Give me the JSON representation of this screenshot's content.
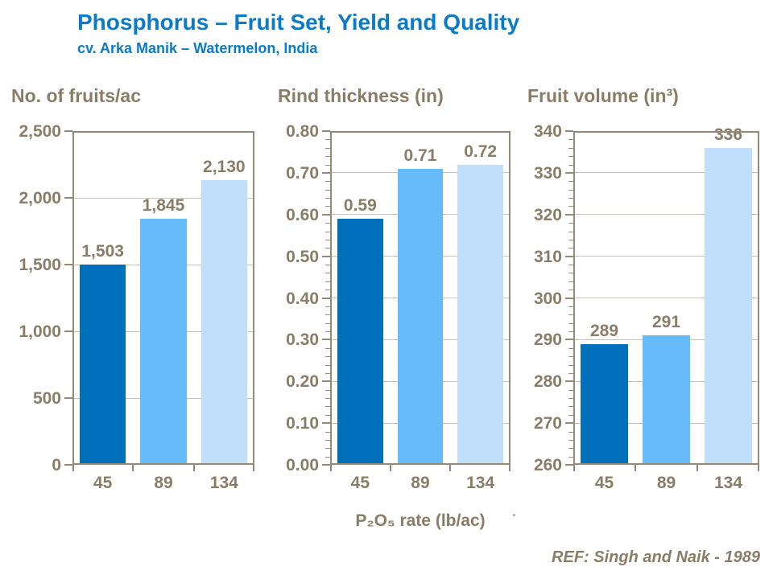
{
  "header": {
    "title": "Phosphorus – Fruit Set, Yield and Quality",
    "subtitle": "cv. Arka Manik – Watermelon, India"
  },
  "footer": {
    "ref": "REF: Singh and Naik - 1989"
  },
  "colors": {
    "title_blue": "#0C7BC6",
    "text_brown": "#8A7D68",
    "axis_frame": "#95897A",
    "gridline": "#CBC2B4",
    "bar_dark_blue": "#0070BD",
    "bar_medium_blue": "#67BBF8",
    "bar_light_blue": "#BFDFFA"
  },
  "chart_data": [
    {
      "type": "bar",
      "title": "No. of fruits/ac",
      "xlabel": "P₂O₅ rate (lb/ac)",
      "categories": [
        "45",
        "89",
        "134"
      ],
      "values": [
        1503,
        1845,
        2130
      ],
      "bar_labels": [
        "1,503",
        "1,845",
        "2,130"
      ],
      "bar_colors": [
        "#0070BD",
        "#67BBF8",
        "#BFDFFA"
      ],
      "ylim": [
        0,
        2500
      ],
      "yticks": [
        0,
        500,
        1000,
        1500,
        2000,
        2500
      ],
      "ytick_labels": [
        "0",
        "500",
        "1,000",
        "1,500",
        "2,000",
        "2,500"
      ],
      "minor_ticks_per_interval": 0,
      "grid": true,
      "legend": "none"
    },
    {
      "type": "bar",
      "title": "Rind thickness (in)",
      "xlabel": "P₂O₅ rate (lb/ac)",
      "categories": [
        "45",
        "89",
        "134"
      ],
      "values": [
        0.59,
        0.71,
        0.72
      ],
      "bar_labels": [
        "0.59",
        "0.71",
        "0.72"
      ],
      "bar_colors": [
        "#0070BD",
        "#67BBF8",
        "#BFDFFA"
      ],
      "ylim": [
        0,
        0.8
      ],
      "yticks": [
        0,
        0.1,
        0.2,
        0.3,
        0.4,
        0.5,
        0.6,
        0.7,
        0.8
      ],
      "ytick_labels": [
        "0.00",
        "0.10",
        "0.20",
        "0.30",
        "0.40",
        "0.50",
        "0.60",
        "0.70",
        "0.80"
      ],
      "minor_ticks_per_interval": 4,
      "grid": true,
      "legend": "none"
    },
    {
      "type": "bar",
      "title": "Fruit volume (in³)",
      "xlabel": "P₂O₅ rate (lb/ac)",
      "categories": [
        "45",
        "89",
        "134"
      ],
      "values": [
        289,
        291,
        336
      ],
      "bar_labels": [
        "289",
        "291",
        "336"
      ],
      "bar_colors": [
        "#0070BD",
        "#67BBF8",
        "#BFDFFA"
      ],
      "ylim": [
        260,
        340
      ],
      "yticks": [
        260,
        270,
        280,
        290,
        300,
        310,
        320,
        330,
        340
      ],
      "ytick_labels": [
        "260",
        "270",
        "280",
        "290",
        "300",
        "310",
        "320",
        "330",
        "340"
      ],
      "minor_ticks_per_interval": 4,
      "grid": true,
      "legend": "none"
    }
  ],
  "xaxis_label": "P₂O₅ rate (lb/ac)"
}
